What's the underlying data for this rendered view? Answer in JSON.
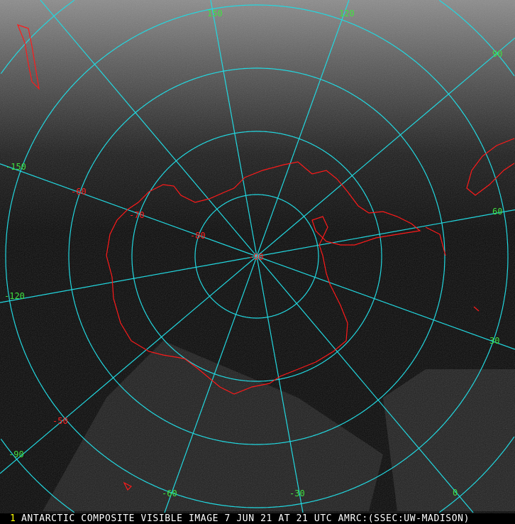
{
  "caption": {
    "frame_number": "1",
    "text": "ANTARCTIC COMPOSITE VISIBLE IMAGE 7 JUN 21 AT 21 UTC AMRC:(SSEC:UW-MADISON)"
  },
  "colors": {
    "grid": "#22d8e0",
    "coast": "#ff1a1a",
    "lon_label": "#40e040",
    "lat_label": "#ff2020",
    "caption_text": "#ffffff",
    "frame_number": "#ffff00"
  },
  "latitude_labels": [
    "-90",
    "-80",
    "-70",
    "-60",
    "-50"
  ],
  "longitude_labels": [
    "150",
    "120",
    "90",
    "60",
    "30",
    "0",
    "-30",
    "-60",
    "-90",
    "-120",
    "-150"
  ]
}
